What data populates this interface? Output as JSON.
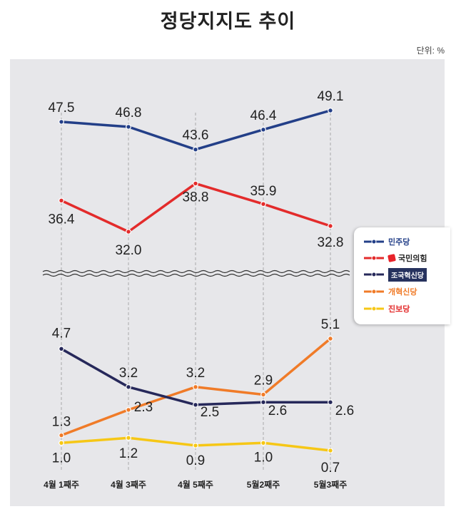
{
  "header": {
    "title": "정당지지도 추이",
    "unit": "단위: %"
  },
  "chart_data": {
    "type": "line",
    "title": "정당지지도 추이",
    "unit": "단위: %",
    "categories": [
      "4월 1째주",
      "4월 3째주",
      "4월 5째주",
      "5월2째주",
      "5월3째주"
    ],
    "axis_break": true,
    "series": [
      {
        "name": "민주당",
        "color": "#233f88",
        "values": [
          47.5,
          46.8,
          43.6,
          46.4,
          49.1
        ],
        "labels": [
          "47.5",
          "46.8",
          "43.6",
          "46.4",
          "49.1"
        ]
      },
      {
        "name": "국민의힘",
        "color": "#e32b2b",
        "values": [
          36.4,
          32.0,
          38.8,
          35.9,
          32.8
        ],
        "labels": [
          "36.4",
          "32.0",
          "38.8",
          "35.9",
          "32.8"
        ]
      },
      {
        "name": "조국혁신당",
        "color": "#26285a",
        "values": [
          4.7,
          3.2,
          2.5,
          2.6,
          2.6
        ],
        "labels": [
          "4.7",
          "3.2",
          "2.5",
          "2.6",
          "2.6"
        ]
      },
      {
        "name": "개혁신당",
        "color": "#f07b28",
        "values": [
          1.3,
          2.3,
          3.2,
          2.9,
          5.1
        ],
        "labels": [
          "1.3",
          "2.3",
          "3.2",
          "2.9",
          "5.1"
        ]
      },
      {
        "name": "진보당",
        "color": "#f6c716",
        "values": [
          1.0,
          1.2,
          0.9,
          1.0,
          0.7
        ],
        "labels": [
          "1.0",
          "1.2",
          "0.9",
          "1.0",
          "0.7"
        ]
      }
    ],
    "legend_position": "right"
  }
}
